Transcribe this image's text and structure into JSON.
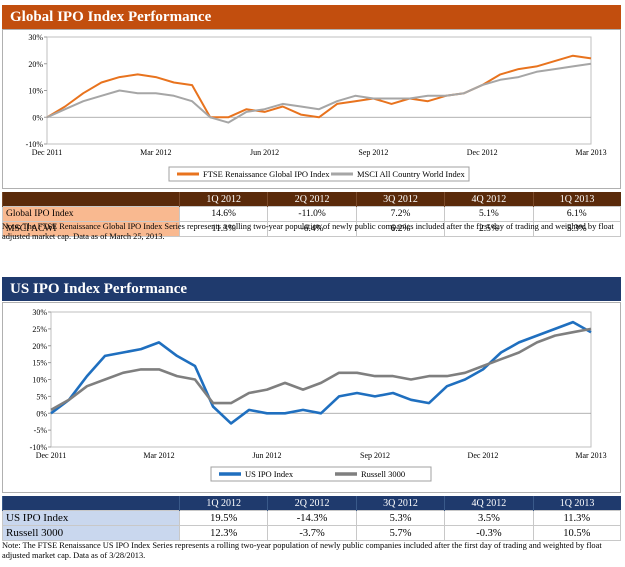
{
  "header1": "Global IPO Index Performance",
  "header2": "US IPO Index Performance",
  "chart_data": [
    {
      "type": "line",
      "title": "Global IPO Index Performance",
      "xlabel": "",
      "ylabel": "",
      "ylim": [
        -0.1,
        0.3
      ],
      "yticks": [
        "30%",
        "20%",
        "10%",
        "0%",
        "-10%"
      ],
      "xticks": [
        "Dec 2011",
        "Mar 2012",
        "Jun 2012",
        "Sep 2012",
        "Dec 2012",
        "Mar 2013"
      ],
      "x_months": [
        0,
        0.5,
        1,
        1.5,
        2,
        2.5,
        3,
        3.5,
        4,
        4.5,
        5,
        5.5,
        6,
        6.5,
        7,
        7.5,
        8,
        8.5,
        9,
        9.5,
        10,
        10.5,
        11,
        11.5,
        12,
        12.5,
        13,
        13.5,
        14,
        14.5,
        15
      ],
      "legend": "bottom-center",
      "series": [
        {
          "name": "FTSE Renaissance Global IPO Index",
          "color": "#e8731e",
          "values": [
            0.0,
            0.04,
            0.09,
            0.13,
            0.15,
            0.16,
            0.15,
            0.13,
            0.12,
            0.0,
            0.0,
            0.03,
            0.02,
            0.04,
            0.01,
            0.0,
            0.05,
            0.06,
            0.07,
            0.05,
            0.07,
            0.06,
            0.08,
            0.09,
            0.12,
            0.16,
            0.18,
            0.19,
            0.21,
            0.23,
            0.22
          ]
        },
        {
          "name": "MSCI All Country World Index",
          "color": "#a6a6a6",
          "values": [
            0.0,
            0.03,
            0.06,
            0.08,
            0.1,
            0.09,
            0.09,
            0.08,
            0.06,
            0.0,
            -0.02,
            0.02,
            0.03,
            0.05,
            0.04,
            0.03,
            0.06,
            0.08,
            0.07,
            0.07,
            0.07,
            0.08,
            0.08,
            0.09,
            0.12,
            0.14,
            0.15,
            0.17,
            0.18,
            0.19,
            0.2
          ]
        }
      ]
    },
    {
      "type": "line",
      "title": "US IPO Index Performance",
      "xlabel": "",
      "ylabel": "",
      "ylim": [
        -0.1,
        0.3
      ],
      "yticks": [
        "30%",
        "25%",
        "20%",
        "15%",
        "10%",
        "5%",
        "0%",
        "-5%",
        "-10%"
      ],
      "xticks": [
        "Dec 2011",
        "Mar 2012",
        "Jun 2012",
        "Sep 2012",
        "Dec 2012",
        "Mar 2013"
      ],
      "x_months": [
        0,
        0.5,
        1,
        1.5,
        2,
        2.5,
        3,
        3.5,
        4,
        4.5,
        5,
        5.5,
        6,
        6.5,
        7,
        7.5,
        8,
        8.5,
        9,
        9.5,
        10,
        10.5,
        11,
        11.5,
        12,
        12.5,
        13,
        13.5,
        14,
        14.5,
        15
      ],
      "legend": "bottom-center",
      "series": [
        {
          "name": "US IPO Index",
          "color": "#1f6fbf",
          "values": [
            0.0,
            0.04,
            0.11,
            0.17,
            0.18,
            0.19,
            0.21,
            0.17,
            0.14,
            0.02,
            -0.03,
            0.01,
            0.0,
            0.0,
            0.01,
            0.0,
            0.05,
            0.06,
            0.05,
            0.06,
            0.04,
            0.03,
            0.08,
            0.1,
            0.13,
            0.18,
            0.21,
            0.23,
            0.25,
            0.27,
            0.24
          ]
        },
        {
          "name": "Russell 3000",
          "color": "#7f7f7f",
          "values": [
            0.01,
            0.04,
            0.08,
            0.1,
            0.12,
            0.13,
            0.13,
            0.11,
            0.1,
            0.03,
            0.03,
            0.06,
            0.07,
            0.09,
            0.07,
            0.09,
            0.12,
            0.12,
            0.11,
            0.11,
            0.1,
            0.11,
            0.11,
            0.12,
            0.14,
            0.16,
            0.18,
            0.21,
            0.23,
            0.24,
            0.25
          ]
        }
      ]
    }
  ],
  "table1": {
    "headers": [
      "",
      "1Q 2012",
      "2Q 2012",
      "3Q 2012",
      "4Q 2012",
      "1Q 2013"
    ],
    "rows": [
      [
        "Global IPO Index",
        "14.6%",
        "-11.0%",
        "7.2%",
        "5.1%",
        "6.1%"
      ],
      [
        "MSCI ACWI",
        "11.3%",
        "-6.4%",
        "6.2%",
        "2.5%",
        "5.3%"
      ]
    ]
  },
  "note1": "Note: The FTSE Renaissance Global IPO Index Series represents a rolling two-year population of newly public companies included after the first day of trading and weighted by float adjusted market cap. Data as of March 25, 2013.",
  "table2": {
    "headers": [
      "",
      "1Q 2012",
      "2Q 2012",
      "3Q 2012",
      "4Q 2012",
      "1Q 2013"
    ],
    "rows": [
      [
        "US IPO Index",
        "19.5%",
        "-14.3%",
        "5.3%",
        "3.5%",
        "11.3%"
      ],
      [
        "Russell 3000",
        "12.3%",
        "-3.7%",
        "5.7%",
        "-0.3%",
        "10.5%"
      ]
    ]
  },
  "note2": "Note: The FTSE Renaissance US IPO Index Series represents a rolling two-year population of newly public companies included after the first day of trading and weighted by float adjusted market cap. Data as of 3/28/2013."
}
